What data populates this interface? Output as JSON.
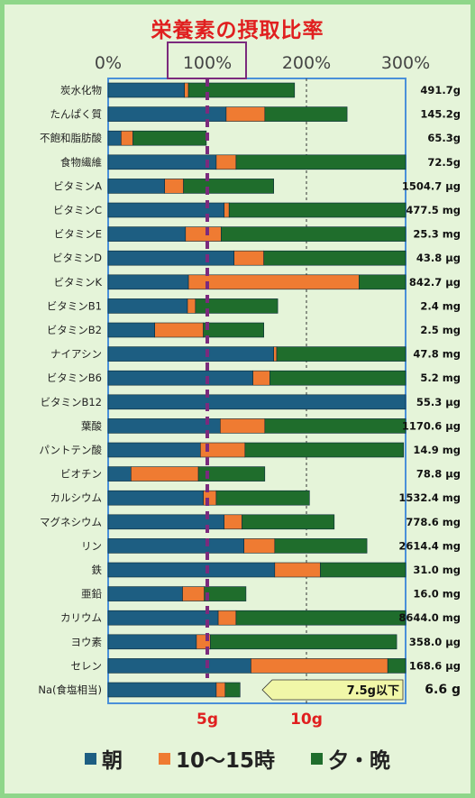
{
  "title": "栄養素の摂取比率",
  "chart_data": {
    "type": "bar",
    "stacked": true,
    "orientation": "horizontal",
    "x_ticks": [
      "0%",
      "100%",
      "200%",
      "300%"
    ],
    "xlim": [
      0,
      300
    ],
    "highlight_tick": "100%",
    "secondary_axis_labels": [
      "5g",
      "10g"
    ],
    "grid": true,
    "legend_position": "bottom",
    "colors": {
      "morning": "#1d5e82",
      "snack": "#ef7b32",
      "evening": "#1f6d2c",
      "reference_line": "#7b2a7d"
    },
    "series": [
      {
        "name": "朝",
        "color": "#1d5e82",
        "values": [
          77,
          119,
          13,
          109,
          57,
          117,
          78,
          127,
          81,
          80,
          47,
          167,
          146,
          300,
          113,
          93,
          23,
          96,
          117,
          137,
          168,
          75,
          111,
          89,
          144,
          109
        ]
      },
      {
        "name": "10〜15時",
        "color": "#ef7b32",
        "values": [
          4,
          39,
          12,
          20,
          19,
          5,
          36,
          30,
          172,
          8,
          49,
          3,
          17,
          0,
          45,
          45,
          68,
          13,
          18,
          31,
          46,
          22,
          18,
          14,
          138,
          9
        ]
      },
      {
        "name": "夕・晩",
        "color": "#1f6d2c",
        "values": [
          107,
          83,
          74,
          171,
          91,
          178,
          186,
          143,
          47,
          83,
          61,
          130,
          137,
          0,
          142,
          160,
          67,
          94,
          93,
          93,
          86,
          42,
          171,
          188,
          18,
          15
        ]
      }
    ],
    "categories": [
      {
        "name": "炭水化物",
        "amount": "491.7g"
      },
      {
        "name": "たんぱく質",
        "amount": "145.2g"
      },
      {
        "name": "不飽和脂肪酸",
        "amount": "65.3g"
      },
      {
        "name": "食物繊維",
        "amount": "72.5g"
      },
      {
        "name": "ビタミンA",
        "amount": "1504.7 μg"
      },
      {
        "name": "ビタミンC",
        "amount": "477.5 mg"
      },
      {
        "name": "ビタミンE",
        "amount": "25.3 mg"
      },
      {
        "name": "ビタミンD",
        "amount": "43.8 μg"
      },
      {
        "name": "ビタミンK",
        "amount": "842.7 μg"
      },
      {
        "name": "ビタミンB1",
        "amount": "2.4 mg"
      },
      {
        "name": "ビタミンB2",
        "amount": "2.5 mg"
      },
      {
        "name": "ナイアシン",
        "amount": "47.8 mg"
      },
      {
        "name": "ビタミンB6",
        "amount": "5.2 mg"
      },
      {
        "name": "ビタミンB12",
        "amount": "55.3 μg"
      },
      {
        "name": "葉酸",
        "amount": "1170.6 μg"
      },
      {
        "name": "パントテン酸",
        "amount": "14.9 mg"
      },
      {
        "name": "ビオチン",
        "amount": "78.8 μg"
      },
      {
        "name": "カルシウム",
        "amount": "1532.4 mg"
      },
      {
        "name": "マグネシウム",
        "amount": "778.6 mg"
      },
      {
        "name": "リン",
        "amount": "2614.4 mg"
      },
      {
        "name": "鉄",
        "amount": "31.0 mg"
      },
      {
        "name": "亜鉛",
        "amount": "16.0 mg"
      },
      {
        "name": "カリウム",
        "amount": "8644.0 mg"
      },
      {
        "name": "ヨウ素",
        "amount": "358.0 μg"
      },
      {
        "name": "セレン",
        "amount": "168.6 μg"
      },
      {
        "name": "Na(食塩相当)",
        "amount": "6.6 g"
      }
    ],
    "annotation": {
      "label": "7.5g以下",
      "category": "Na(食塩相当)"
    }
  }
}
